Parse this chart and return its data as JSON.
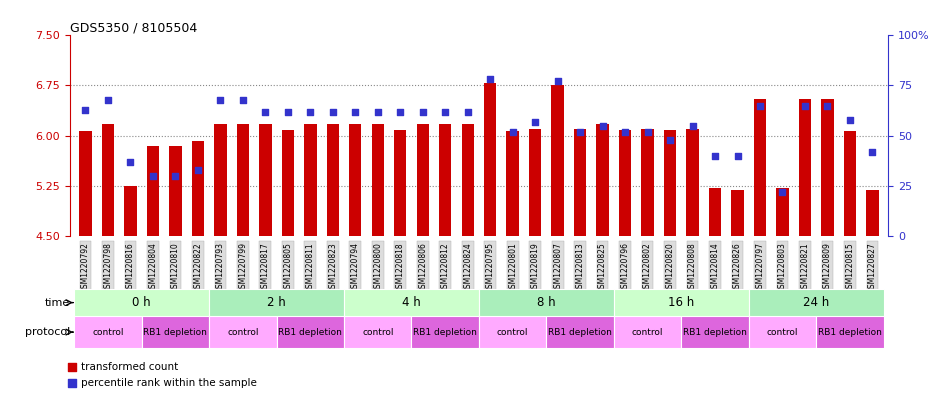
{
  "title": "GDS5350 / 8105504",
  "samples": [
    "GSM1220792",
    "GSM1220798",
    "GSM1220816",
    "GSM1220804",
    "GSM1220810",
    "GSM1220822",
    "GSM1220793",
    "GSM1220799",
    "GSM1220817",
    "GSM1220805",
    "GSM1220811",
    "GSM1220823",
    "GSM1220794",
    "GSM1220800",
    "GSM1220818",
    "GSM1220806",
    "GSM1220812",
    "GSM1220824",
    "GSM1220795",
    "GSM1220801",
    "GSM1220819",
    "GSM1220807",
    "GSM1220813",
    "GSM1220825",
    "GSM1220796",
    "GSM1220802",
    "GSM1220820",
    "GSM1220808",
    "GSM1220814",
    "GSM1220826",
    "GSM1220797",
    "GSM1220803",
    "GSM1220821",
    "GSM1220809",
    "GSM1220815",
    "GSM1220827"
  ],
  "bar_values": [
    6.07,
    6.17,
    5.25,
    5.85,
    5.85,
    5.92,
    6.17,
    6.17,
    6.17,
    6.08,
    6.17,
    6.17,
    6.17,
    6.17,
    6.08,
    6.17,
    6.17,
    6.17,
    6.78,
    6.07,
    6.1,
    6.75,
    6.1,
    6.17,
    6.08,
    6.1,
    6.08,
    6.1,
    5.22,
    5.18,
    6.55,
    5.22,
    6.55,
    6.55,
    6.07,
    5.18
  ],
  "dot_values": [
    63,
    68,
    37,
    30,
    30,
    33,
    68,
    68,
    62,
    62,
    62,
    62,
    62,
    62,
    62,
    62,
    62,
    62,
    78,
    52,
    57,
    77,
    52,
    55,
    52,
    52,
    48,
    55,
    40,
    40,
    65,
    22,
    65,
    65,
    58,
    42
  ],
  "ylim_left": [
    4.5,
    7.5
  ],
  "ylim_right": [
    0,
    100
  ],
  "yticks_left": [
    4.5,
    5.25,
    6.0,
    6.75,
    7.5
  ],
  "yticks_right": [
    0,
    25,
    50,
    75,
    100
  ],
  "ytick_labels_right": [
    "0",
    "25",
    "50",
    "75",
    "100%"
  ],
  "bar_color": "#cc0000",
  "dot_color": "#3333cc",
  "bar_bottom": 4.5,
  "time_groups": [
    {
      "label": "0 h",
      "start": 0,
      "end": 6
    },
    {
      "label": "2 h",
      "start": 6,
      "end": 12
    },
    {
      "label": "4 h",
      "start": 12,
      "end": 18
    },
    {
      "label": "8 h",
      "start": 18,
      "end": 24
    },
    {
      "label": "16 h",
      "start": 24,
      "end": 30
    },
    {
      "label": "24 h",
      "start": 30,
      "end": 36
    }
  ],
  "time_colors": [
    "#ccffcc",
    "#aaeebb",
    "#ccffcc",
    "#aaeebb",
    "#ccffcc",
    "#aaeebb"
  ],
  "protocol_groups": [
    {
      "label": "control",
      "start": 0,
      "end": 3,
      "color": "#ffaaff"
    },
    {
      "label": "RB1 depletion",
      "start": 3,
      "end": 6,
      "color": "#dd66dd"
    },
    {
      "label": "control",
      "start": 6,
      "end": 9,
      "color": "#ffaaff"
    },
    {
      "label": "RB1 depletion",
      "start": 9,
      "end": 12,
      "color": "#dd66dd"
    },
    {
      "label": "control",
      "start": 12,
      "end": 15,
      "color": "#ffaaff"
    },
    {
      "label": "RB1 depletion",
      "start": 15,
      "end": 18,
      "color": "#dd66dd"
    },
    {
      "label": "control",
      "start": 18,
      "end": 21,
      "color": "#ffaaff"
    },
    {
      "label": "RB1 depletion",
      "start": 21,
      "end": 24,
      "color": "#dd66dd"
    },
    {
      "label": "control",
      "start": 24,
      "end": 27,
      "color": "#ffaaff"
    },
    {
      "label": "RB1 depletion",
      "start": 27,
      "end": 30,
      "color": "#dd66dd"
    },
    {
      "label": "control",
      "start": 30,
      "end": 33,
      "color": "#ffaaff"
    },
    {
      "label": "RB1 depletion",
      "start": 33,
      "end": 36,
      "color": "#dd66dd"
    }
  ],
  "bg_color": "#ffffff",
  "dotted_lines": [
    5.25,
    6.0,
    6.75
  ],
  "left_label": "time",
  "protocol_label": "protocol"
}
